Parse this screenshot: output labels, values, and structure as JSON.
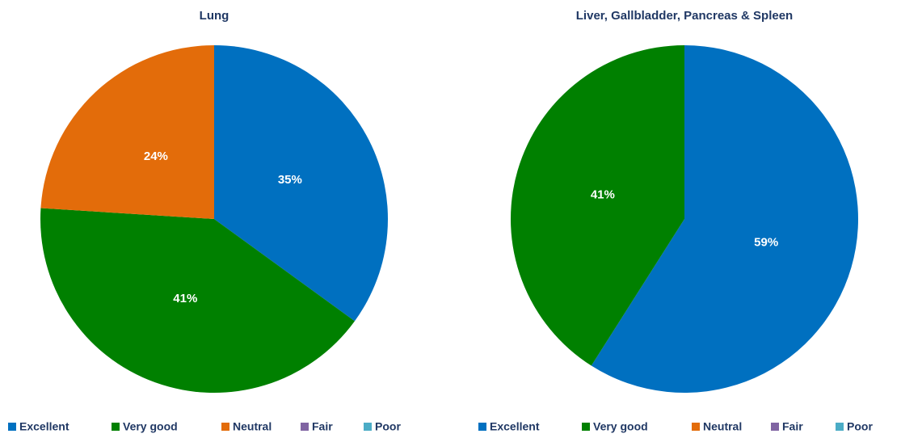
{
  "chart_data": [
    {
      "type": "pie",
      "title": "Lung",
      "categories": [
        "Excellent",
        "Very good",
        "Neutral",
        "Fair",
        "Poor"
      ],
      "values": [
        35,
        41,
        24,
        0,
        0
      ],
      "value_labels": [
        "35%",
        "41%",
        "24%",
        null,
        null
      ],
      "colors": [
        "#0070c0",
        "#008000",
        "#e36c0a",
        "#8064a2",
        "#4bacc6"
      ]
    },
    {
      "type": "pie",
      "title": "Liver, Gallbladder, Pancreas & Spleen",
      "categories": [
        "Excellent",
        "Very good",
        "Neutral",
        "Fair",
        "Poor"
      ],
      "values": [
        59,
        41,
        0,
        0,
        0
      ],
      "value_labels": [
        "59%",
        "41%",
        null,
        null,
        null
      ],
      "colors": [
        "#0070c0",
        "#008000",
        "#e36c0a",
        "#8064a2",
        "#4bacc6"
      ]
    }
  ]
}
